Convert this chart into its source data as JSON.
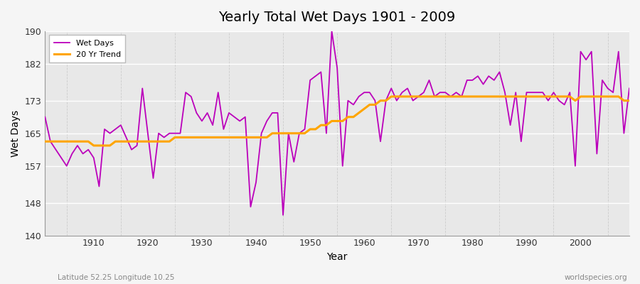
{
  "title": "Yearly Total Wet Days 1901 - 2009",
  "xlabel": "Year",
  "ylabel": "Wet Days",
  "lat_lon_label": "Latitude 52.25 Longitude 10.25",
  "watermark": "worldspecies.org",
  "line_color": "#bb00bb",
  "trend_color": "#FFA500",
  "fig_bg_color": "#f5f5f5",
  "plot_bg_color": "#e8e8e8",
  "ylim": [
    140,
    190
  ],
  "yticks": [
    140,
    148,
    157,
    165,
    173,
    182,
    190
  ],
  "xticks": [
    1910,
    1920,
    1930,
    1940,
    1950,
    1960,
    1970,
    1980,
    1990,
    2000
  ],
  "years": [
    1901,
    1902,
    1903,
    1904,
    1905,
    1906,
    1907,
    1908,
    1909,
    1910,
    1911,
    1912,
    1913,
    1914,
    1915,
    1916,
    1917,
    1918,
    1919,
    1920,
    1921,
    1922,
    1923,
    1924,
    1925,
    1926,
    1927,
    1928,
    1929,
    1930,
    1931,
    1932,
    1933,
    1934,
    1935,
    1936,
    1937,
    1938,
    1939,
    1940,
    1941,
    1942,
    1943,
    1944,
    1945,
    1946,
    1947,
    1948,
    1949,
    1950,
    1951,
    1952,
    1953,
    1954,
    1955,
    1956,
    1957,
    1958,
    1959,
    1960,
    1961,
    1962,
    1963,
    1964,
    1965,
    1966,
    1967,
    1968,
    1969,
    1970,
    1971,
    1972,
    1973,
    1974,
    1975,
    1976,
    1977,
    1978,
    1979,
    1980,
    1981,
    1982,
    1983,
    1984,
    1985,
    1986,
    1987,
    1988,
    1989,
    1990,
    1991,
    1992,
    1993,
    1994,
    1995,
    1996,
    1997,
    1998,
    1999,
    2000,
    2001,
    2002,
    2003,
    2004,
    2005,
    2006,
    2007,
    2008,
    2009
  ],
  "wet_days": [
    169,
    163,
    161,
    159,
    157,
    160,
    162,
    160,
    161,
    159,
    152,
    166,
    165,
    166,
    167,
    164,
    161,
    162,
    176,
    165,
    154,
    165,
    164,
    165,
    165,
    165,
    175,
    174,
    170,
    168,
    170,
    167,
    175,
    166,
    170,
    169,
    168,
    169,
    147,
    153,
    165,
    168,
    170,
    170,
    145,
    165,
    158,
    165,
    166,
    178,
    179,
    180,
    165,
    190,
    181,
    157,
    173,
    172,
    174,
    175,
    175,
    173,
    163,
    173,
    176,
    173,
    175,
    176,
    173,
    174,
    175,
    178,
    174,
    175,
    175,
    174,
    175,
    174,
    178,
    178,
    179,
    177,
    179,
    178,
    180,
    175,
    167,
    175,
    163,
    175,
    175,
    175,
    175,
    173,
    175,
    173,
    172,
    175,
    157,
    185,
    183,
    185,
    160,
    178,
    176,
    175,
    185,
    165,
    176
  ],
  "trend": [
    163,
    163,
    163,
    163,
    163,
    163,
    163,
    163,
    163,
    162,
    162,
    162,
    162,
    163,
    163,
    163,
    163,
    163,
    163,
    163,
    163,
    163,
    163,
    163,
    164,
    164,
    164,
    164,
    164,
    164,
    164,
    164,
    164,
    164,
    164,
    164,
    164,
    164,
    164,
    164,
    164,
    164,
    165,
    165,
    165,
    165,
    165,
    165,
    165,
    166,
    166,
    167,
    167,
    168,
    168,
    168,
    169,
    169,
    170,
    171,
    172,
    172,
    173,
    173,
    174,
    174,
    174,
    174,
    174,
    174,
    174,
    174,
    174,
    174,
    174,
    174,
    174,
    174,
    174,
    174,
    174,
    174,
    174,
    174,
    174,
    174,
    174,
    174,
    174,
    174,
    174,
    174,
    174,
    174,
    174,
    174,
    174,
    174,
    173,
    174,
    174,
    174,
    174,
    174,
    174,
    174,
    174,
    173,
    173
  ]
}
